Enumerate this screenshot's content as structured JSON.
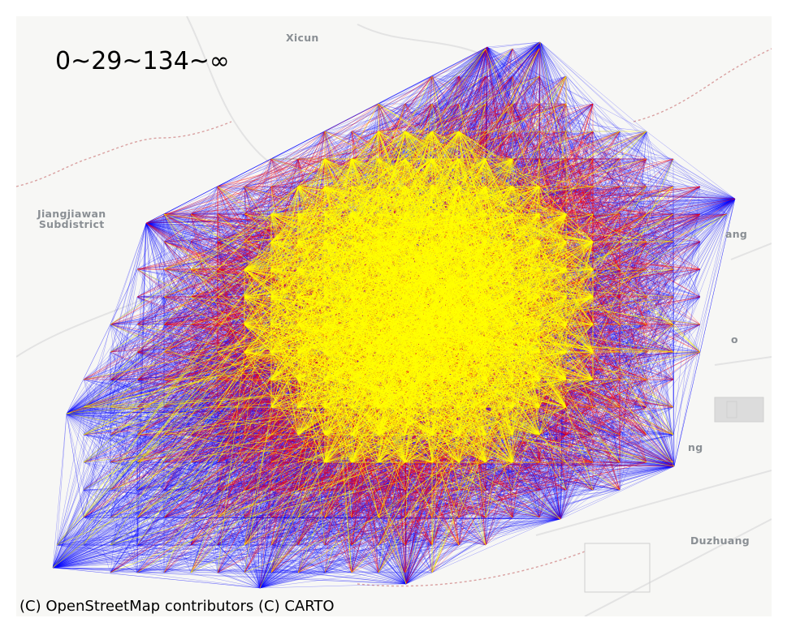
{
  "map": {
    "legend_title": "0~29~134~∞",
    "attribution": "(C) OpenStreetMap contributors (C) CARTO",
    "place_labels": [
      {
        "id": "xicun",
        "text": "Xicun"
      },
      {
        "id": "jiangjiawan",
        "text": "Jiangjiawan\nSubdistrict"
      },
      {
        "id": "duzhuang",
        "text": "Duzhuang"
      },
      {
        "id": "partial-ang",
        "text": "ang"
      },
      {
        "id": "partial-ng",
        "text": "ng"
      },
      {
        "id": "partial-o",
        "text": "o"
      }
    ],
    "basemap_colors": {
      "land": "#f7f7f5",
      "road": "#e3e3e3",
      "boundary": "#d9a0a0",
      "block": "#dcdcdc"
    },
    "network": {
      "edge_classes": [
        {
          "range": "0~29",
          "color": "#ffff00"
        },
        {
          "range": "29~134",
          "color": "#ff0000"
        },
        {
          "range": "134~∞",
          "color": "#0000ff"
        }
      ]
    }
  }
}
